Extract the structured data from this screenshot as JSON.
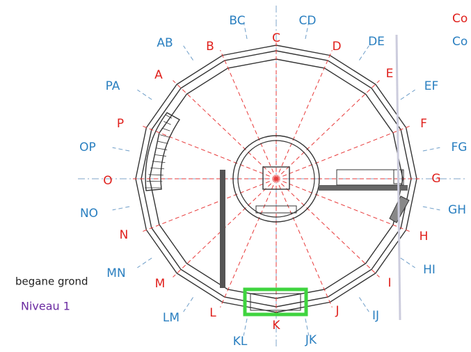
{
  "vertices": [
    "A",
    "B",
    "C",
    "D",
    "E",
    "F",
    "G",
    "H",
    "I",
    "J",
    "K",
    "L",
    "M",
    "N",
    "O",
    "P"
  ],
  "pairs": [
    "AB",
    "BC",
    "CD",
    "DE",
    "EF",
    "FG",
    "GH",
    "HI",
    "IJ",
    "JK",
    "KL",
    "LM",
    "MN",
    "NO",
    "OP",
    "PA"
  ],
  "side_labels": [
    "Co",
    "Co"
  ],
  "caption": "begane grond",
  "level": "Niveau 1"
}
